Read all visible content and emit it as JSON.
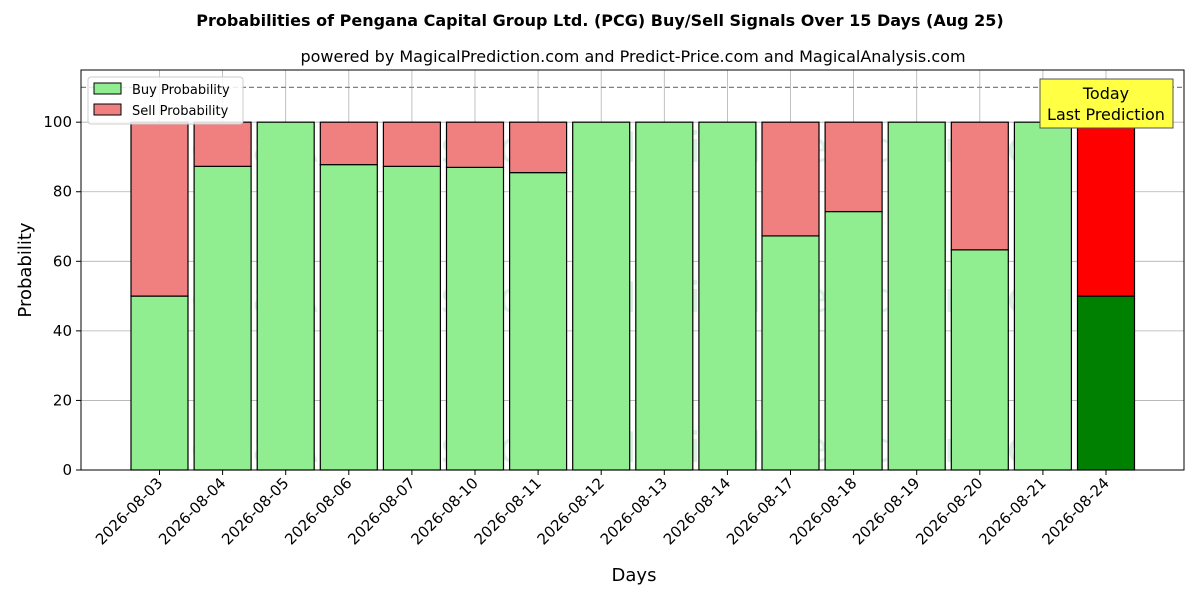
{
  "chart_data": {
    "type": "bar",
    "stacked": true,
    "title": "Probabilities of Pengana Capital Group Ltd. (PCG) Buy/Sell Signals Over 15 Days (Aug 25)",
    "subtitle": "powered by MagicalPrediction.com and Predict-Price.com and MagicalAnalysis.com",
    "xlabel": "Days",
    "ylabel": "Probability",
    "ylim": [
      0,
      115
    ],
    "yticks": [
      0,
      20,
      40,
      60,
      80,
      100
    ],
    "reference_line": 110,
    "grid": true,
    "legend_position": "top-left",
    "categories": [
      "2026-08-03",
      "2026-08-04",
      "2026-08-05",
      "2026-08-06",
      "2026-08-07",
      "2026-08-10",
      "2026-08-11",
      "2026-08-12",
      "2026-08-13",
      "2026-08-14",
      "2026-08-17",
      "2026-08-18",
      "2026-08-19",
      "2026-08-20",
      "2026-08-21",
      "2026-08-24"
    ],
    "series": [
      {
        "name": "Buy Probability",
        "color": "#90ee90",
        "values": [
          50,
          87.3,
          100,
          87.8,
          87.3,
          87,
          85.5,
          100,
          100,
          100,
          67.3,
          74.3,
          100,
          63.3,
          100,
          50
        ]
      },
      {
        "name": "Sell Probability",
        "color": "#f08080",
        "values": [
          50,
          12.7,
          0,
          12.2,
          12.7,
          13,
          14.5,
          0,
          0,
          0,
          32.7,
          25.7,
          0,
          36.7,
          0,
          50
        ]
      }
    ],
    "highlight": {
      "index": 15,
      "buy_color": "#008000",
      "sell_color": "#ff0000"
    },
    "annotation": {
      "lines": [
        "Today",
        "Last Prediction"
      ],
      "background": "#ffff44"
    },
    "watermarks": [
      "MagicalAnalysis.com",
      "MagicalPrediction.com"
    ]
  }
}
